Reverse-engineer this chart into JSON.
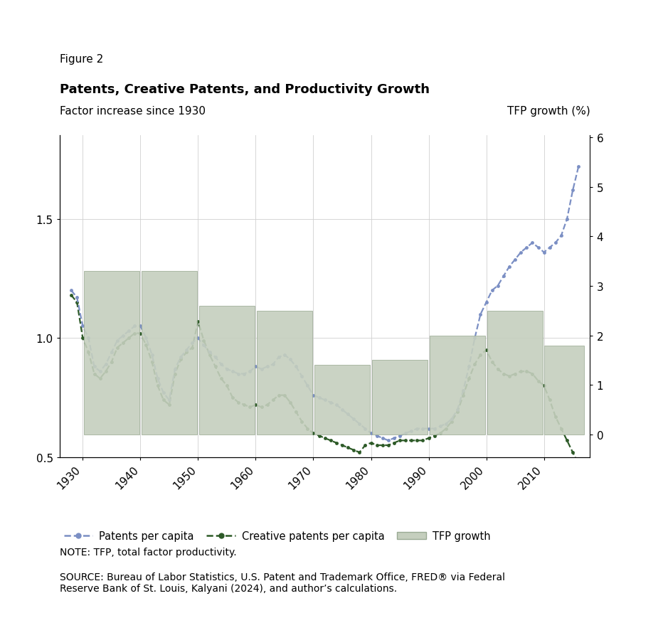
{
  "figure_label": "Figure 2",
  "title": "Patents, Creative Patents, and Productivity Growth",
  "left_ylabel": "Factor increase since 1930",
  "right_ylabel": "TFP growth (%)",
  "note": "NOTE: TFP, total factor productivity.",
  "source": "SOURCE: Bureau of Labor Statistics, U.S. Patent and Trademark Office, FRED® via Federal\nReserve Bank of St. Louis, Kalyani (2024), and author’s calculations.",
  "ylim_left": [
    0.5,
    1.85
  ],
  "ylim_right": [
    -0.46,
    6.04
  ],
  "xlim": [
    1926,
    2018
  ],
  "xticks": [
    1930,
    1940,
    1950,
    1960,
    1970,
    1980,
    1990,
    2000,
    2010
  ],
  "yticks_left": [
    0.5,
    1.0,
    1.5
  ],
  "yticks_right": [
    0,
    1,
    2,
    3,
    4,
    5,
    6
  ],
  "patents_per_capita": {
    "years": [
      1928,
      1929,
      1930,
      1931,
      1932,
      1933,
      1934,
      1935,
      1936,
      1937,
      1938,
      1939,
      1940,
      1941,
      1942,
      1943,
      1944,
      1945,
      1946,
      1947,
      1948,
      1949,
      1950,
      1951,
      1952,
      1953,
      1954,
      1955,
      1956,
      1957,
      1958,
      1959,
      1960,
      1961,
      1962,
      1963,
      1964,
      1965,
      1966,
      1967,
      1968,
      1969,
      1970,
      1971,
      1972,
      1973,
      1974,
      1975,
      1976,
      1977,
      1978,
      1979,
      1980,
      1981,
      1982,
      1983,
      1984,
      1985,
      1986,
      1987,
      1988,
      1989,
      1990,
      1991,
      1992,
      1993,
      1994,
      1995,
      1996,
      1997,
      1998,
      1999,
      2000,
      2001,
      2002,
      2003,
      2004,
      2005,
      2006,
      2007,
      2008,
      2009,
      2010,
      2011,
      2012,
      2013,
      2014,
      2015,
      2016
    ],
    "values": [
      1.2,
      1.17,
      1.05,
      1.0,
      0.88,
      0.86,
      0.89,
      0.94,
      0.99,
      1.01,
      1.03,
      1.05,
      1.05,
      1.0,
      0.93,
      0.83,
      0.77,
      0.74,
      0.87,
      0.92,
      0.95,
      0.98,
      1.0,
      0.97,
      0.94,
      0.92,
      0.89,
      0.87,
      0.86,
      0.85,
      0.85,
      0.86,
      0.88,
      0.87,
      0.88,
      0.89,
      0.92,
      0.93,
      0.91,
      0.88,
      0.84,
      0.8,
      0.76,
      0.75,
      0.74,
      0.73,
      0.72,
      0.7,
      0.68,
      0.66,
      0.64,
      0.62,
      0.6,
      0.59,
      0.58,
      0.57,
      0.58,
      0.59,
      0.6,
      0.61,
      0.62,
      0.62,
      0.62,
      0.62,
      0.63,
      0.64,
      0.66,
      0.7,
      0.78,
      0.88,
      1.0,
      1.1,
      1.15,
      1.2,
      1.22,
      1.26,
      1.3,
      1.33,
      1.36,
      1.38,
      1.4,
      1.38,
      1.36,
      1.38,
      1.4,
      1.43,
      1.5,
      1.62,
      1.72
    ],
    "color": "#7b8fc4",
    "linestyle": "--",
    "marker": "o",
    "markersize": 3.5,
    "linewidth": 1.6
  },
  "creative_patents_per_capita": {
    "years": [
      1928,
      1929,
      1930,
      1931,
      1932,
      1933,
      1934,
      1935,
      1936,
      1937,
      1938,
      1939,
      1940,
      1941,
      1942,
      1943,
      1944,
      1945,
      1946,
      1947,
      1948,
      1949,
      1950,
      1951,
      1952,
      1953,
      1954,
      1955,
      1956,
      1957,
      1958,
      1959,
      1960,
      1961,
      1962,
      1963,
      1964,
      1965,
      1966,
      1967,
      1968,
      1969,
      1970,
      1971,
      1972,
      1973,
      1974,
      1975,
      1976,
      1977,
      1978,
      1979,
      1980,
      1981,
      1982,
      1983,
      1984,
      1985,
      1986,
      1987,
      1988,
      1989,
      1990,
      1991,
      1992,
      1993,
      1994,
      1995,
      1996,
      1997,
      1998,
      1999,
      2000,
      2001,
      2002,
      2003,
      2004,
      2005,
      2006,
      2007,
      2008,
      2009,
      2010,
      2011,
      2012,
      2013,
      2014,
      2015,
      2016
    ],
    "values": [
      1.18,
      1.15,
      1.0,
      0.94,
      0.85,
      0.83,
      0.86,
      0.9,
      0.96,
      0.98,
      1.0,
      1.02,
      1.02,
      0.97,
      0.9,
      0.8,
      0.74,
      0.72,
      0.85,
      0.91,
      0.94,
      0.96,
      1.07,
      0.99,
      0.93,
      0.88,
      0.83,
      0.8,
      0.75,
      0.73,
      0.72,
      0.71,
      0.72,
      0.71,
      0.72,
      0.74,
      0.76,
      0.76,
      0.73,
      0.69,
      0.65,
      0.62,
      0.6,
      0.59,
      0.58,
      0.57,
      0.56,
      0.55,
      0.54,
      0.53,
      0.52,
      0.55,
      0.56,
      0.55,
      0.55,
      0.55,
      0.56,
      0.57,
      0.57,
      0.57,
      0.57,
      0.57,
      0.58,
      0.59,
      0.6,
      0.62,
      0.65,
      0.69,
      0.76,
      0.83,
      0.89,
      0.93,
      0.95,
      0.9,
      0.87,
      0.85,
      0.84,
      0.85,
      0.86,
      0.86,
      0.85,
      0.82,
      0.8,
      0.74,
      0.67,
      0.62,
      0.57,
      0.52,
      0.47
    ],
    "color": "#2d5a27",
    "linestyle": "--",
    "marker": "o",
    "markersize": 3.5,
    "linewidth": 1.6
  },
  "tfp_bars": {
    "left_edges": [
      1930,
      1940,
      1950,
      1960,
      1970,
      1980,
      1990,
      2000,
      2010
    ],
    "widths": [
      10,
      10,
      10,
      10,
      10,
      10,
      10,
      10,
      7
    ],
    "values_pct": [
      3.3,
      3.3,
      2.6,
      2.5,
      1.4,
      1.5,
      2.0,
      2.5,
      1.8
    ],
    "color": "#c5cfbe",
    "edgecolor": "#9aaa94",
    "alpha": 0.9
  },
  "background_color": "#ffffff",
  "grid_color": "#d0d0d0",
  "legend_labels": [
    "Patents per capita",
    "Creative patents per capita",
    "TFP growth"
  ]
}
